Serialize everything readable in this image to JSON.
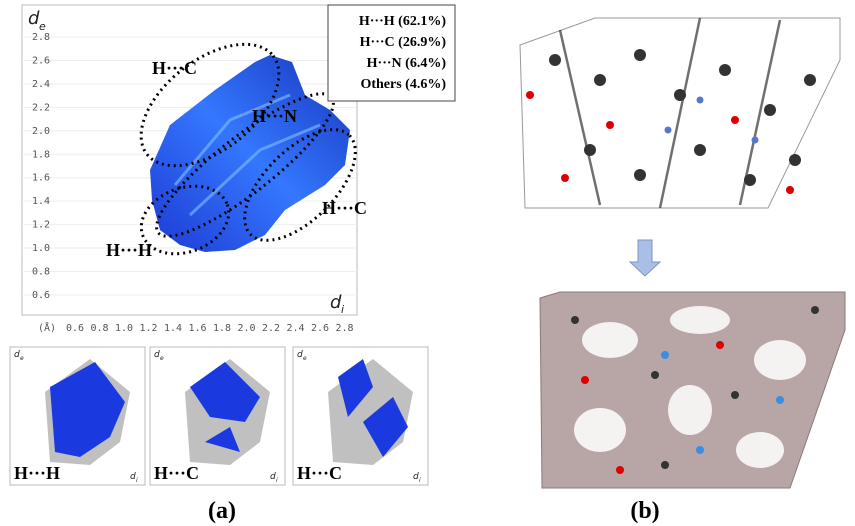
{
  "panel_a": {
    "main_plot": {
      "y_axis_label": "d",
      "y_axis_sub": "e",
      "x_axis_label": "d",
      "x_axis_sub": "i",
      "unit": "(Å)",
      "yticks": [
        "2.8",
        "2.6",
        "2.4",
        "2.2",
        "2.0",
        "1.8",
        "1.6",
        "1.4",
        "1.2",
        "1.0",
        "0.8",
        "0.6"
      ],
      "xticks": [
        "0.6",
        "0.8",
        "1.0",
        "1.2",
        "1.4",
        "1.6",
        "1.8",
        "2.0",
        "2.2",
        "2.4",
        "2.6",
        "2.8"
      ],
      "region_labels": [
        "H···C",
        "H···N",
        "H···C",
        "H···H"
      ],
      "legend": [
        "H···H (62.1%)",
        "H···C (26.9%)",
        "H···N (6.4%)",
        "Others (4.6%)"
      ]
    },
    "sub_plots": [
      {
        "label": "H···H"
      },
      {
        "label": "H···C"
      },
      {
        "label": "H···C"
      }
    ],
    "caption": "(a)"
  },
  "panel_b": {
    "caption": "(b)"
  }
}
